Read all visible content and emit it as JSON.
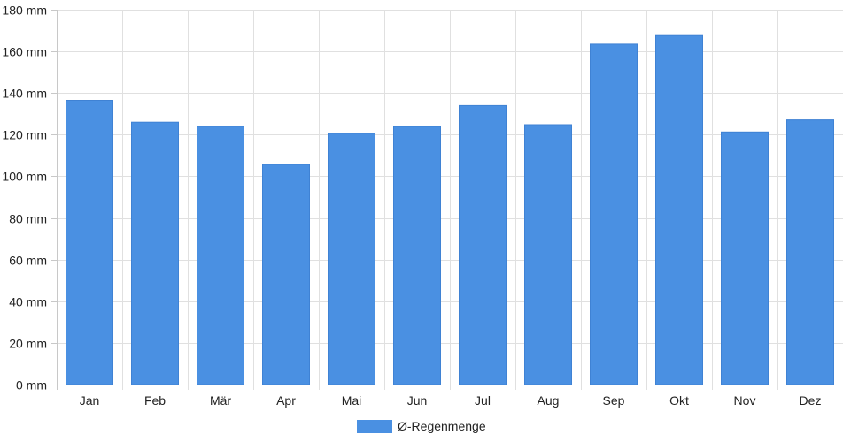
{
  "chart_data": {
    "type": "bar",
    "categories": [
      "Jan",
      "Feb",
      "Mär",
      "Apr",
      "Mai",
      "Jun",
      "Jul",
      "Aug",
      "Sep",
      "Okt",
      "Nov",
      "Dez"
    ],
    "series": [
      {
        "name": "Ø-Regenmenge",
        "values": [
          136.5,
          126,
          124,
          105.7,
          120.6,
          123.9,
          134,
          124.8,
          163.5,
          167.6,
          121.3,
          127.1
        ]
      }
    ],
    "y_ticks": [
      "0 mm",
      "20 mm",
      "40 mm",
      "60 mm",
      "80 mm",
      "100 mm",
      "120 mm",
      "140 mm",
      "160 mm",
      "180 mm"
    ],
    "ylim": [
      0,
      180
    ],
    "y_unit": "mm",
    "grid": true,
    "legend_position": "bottom",
    "colors": {
      "bar": "#4a90e2",
      "grid": "#e0e0e0",
      "axis": "#c8c8c8",
      "text": "#222222"
    }
  }
}
